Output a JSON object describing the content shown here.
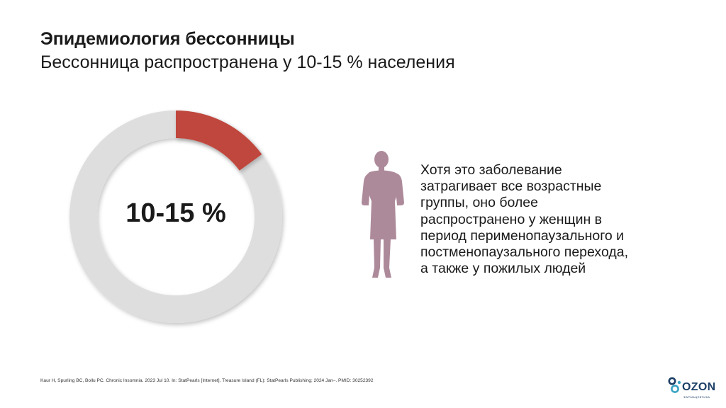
{
  "slide": {
    "title": "Эпидемиология бессонницы",
    "subtitle": "Бессонница распространена у 10-15 % населения"
  },
  "chart_data": {
    "type": "pie",
    "center_label": "10-15 %",
    "highlighted_percent": 15,
    "colors": {
      "highlight": "#c0473d",
      "track": "#dedede"
    }
  },
  "info": {
    "icon": "woman-silhouette-icon",
    "icon_color": "#ad8a9a",
    "lines": [
      "Хотя это заболевание",
      "затрагивает все возрастные",
      "группы, оно более",
      "распространено у женщин в",
      "период перименопаузального и",
      "постменопаузального перехода,",
      "а также у пожилых людей"
    ]
  },
  "footer": {
    "citation": "Kaur H, Spurling BC, Bollu PC. Chronic Insomnia. 2023 Jul 10. In: StatPearls [Internet]. Treasure Island (FL): StatPearls Publishing; 2024 Jan–. PMID: 30252392",
    "logo_name": "OZON",
    "logo_tagline": "ФАРМАЦЕВТИКА",
    "logo_color": "#1c3f66"
  }
}
